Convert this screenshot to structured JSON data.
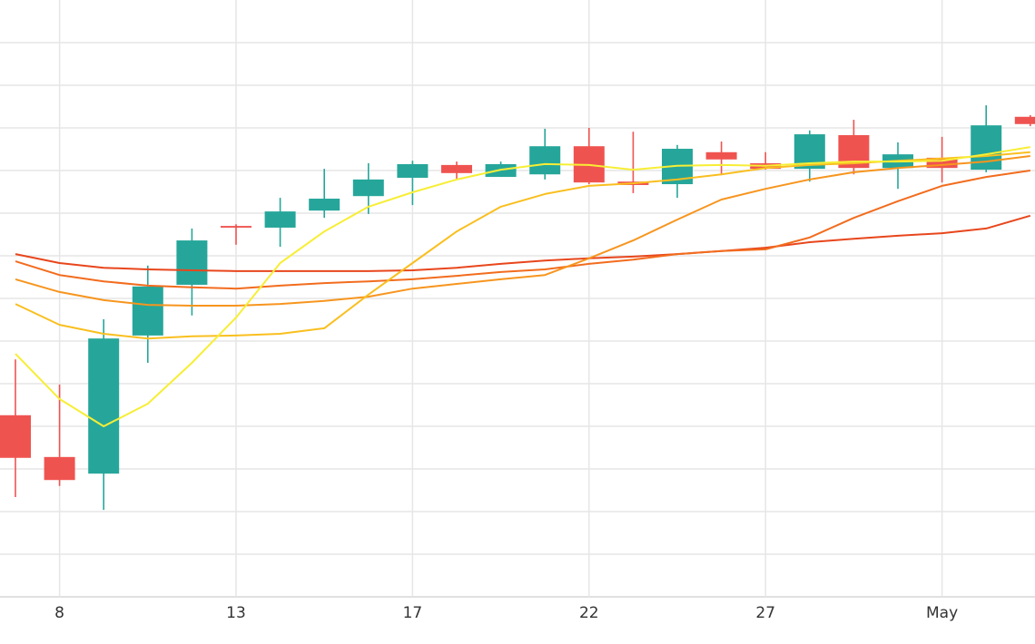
{
  "chart_data": {
    "type": "candlestick",
    "categories": [
      null,
      "8",
      null,
      null,
      null,
      "13",
      null,
      null,
      null,
      "17",
      null,
      null,
      null,
      "22",
      null,
      null,
      null,
      "27",
      null,
      null,
      null,
      "May",
      null,
      null
    ],
    "open": [
      4.26,
      3.28,
      2.89,
      6.13,
      7.32,
      8.7,
      8.66,
      9.06,
      9.4,
      9.83,
      10.13,
      9.85,
      9.91,
      10.57,
      9.74,
      9.68,
      10.43,
      10.17,
      10.04,
      10.83,
      10.06,
      10.3,
      10.02,
      11.26
    ],
    "high": [
      5.57,
      4.98,
      6.51,
      7.77,
      8.64,
      8.74,
      9.36,
      10.04,
      10.17,
      10.23,
      10.21,
      10.21,
      10.98,
      11.0,
      10.91,
      10.6,
      10.68,
      10.43,
      10.94,
      11.19,
      10.66,
      10.79,
      11.53,
      11.3
    ],
    "low": [
      2.34,
      2.6,
      2.04,
      5.49,
      6.6,
      8.26,
      8.21,
      8.89,
      8.98,
      9.19,
      9.79,
      9.85,
      9.79,
      9.68,
      9.47,
      9.36,
      9.89,
      10.02,
      9.74,
      9.91,
      9.57,
      9.72,
      9.96,
      11.04
    ],
    "close": [
      3.26,
      2.74,
      6.06,
      7.28,
      8.36,
      8.66,
      9.04,
      9.34,
      9.79,
      10.15,
      9.94,
      10.15,
      10.57,
      9.72,
      9.66,
      10.51,
      10.26,
      10.04,
      10.85,
      10.06,
      10.38,
      10.06,
      11.06,
      11.09
    ],
    "up_color": "#26a69a",
    "down_color": "#ef5350",
    "lines": [
      {
        "color": "#e8461c",
        "values": [
          8.04,
          7.83,
          7.72,
          7.68,
          7.66,
          7.64,
          7.64,
          7.64,
          7.64,
          7.66,
          7.72,
          7.81,
          7.89,
          7.94,
          7.98,
          8.04,
          8.11,
          8.19,
          8.32,
          8.4,
          8.47,
          8.53,
          8.64,
          8.94
        ]
      },
      {
        "color": "#f26c1e",
        "values": [
          7.87,
          7.55,
          7.4,
          7.3,
          7.26,
          7.23,
          7.3,
          7.36,
          7.4,
          7.45,
          7.53,
          7.62,
          7.68,
          7.81,
          7.91,
          8.04,
          8.11,
          8.15,
          8.43,
          8.89,
          9.28,
          9.64,
          9.85,
          10.0
        ]
      },
      {
        "color": "#f7951e",
        "values": [
          7.45,
          7.15,
          6.96,
          6.85,
          6.83,
          6.83,
          6.87,
          6.94,
          7.04,
          7.23,
          7.34,
          7.45,
          7.55,
          7.94,
          8.36,
          8.85,
          9.32,
          9.57,
          9.79,
          9.96,
          10.06,
          10.13,
          10.21,
          10.34
        ]
      },
      {
        "color": "#f9bf1f",
        "values": [
          6.87,
          6.38,
          6.17,
          6.06,
          6.11,
          6.13,
          6.17,
          6.3,
          7.09,
          7.83,
          8.57,
          9.15,
          9.45,
          9.64,
          9.7,
          9.79,
          9.91,
          10.06,
          10.13,
          10.17,
          10.23,
          10.28,
          10.34,
          10.43
        ]
      },
      {
        "color": "#f7ee35",
        "values": [
          5.7,
          4.64,
          4.0,
          4.53,
          5.49,
          6.55,
          7.83,
          8.57,
          9.15,
          9.49,
          9.79,
          10.02,
          10.15,
          10.13,
          10.02,
          10.11,
          10.13,
          10.11,
          10.17,
          10.21,
          10.21,
          10.23,
          10.38,
          10.55
        ]
      }
    ],
    "ylim": [
      0,
      14
    ],
    "yticks": [
      0,
      1,
      2,
      3,
      4,
      5,
      6,
      7,
      8,
      9,
      10,
      11,
      12,
      13
    ],
    "grid": true
  }
}
